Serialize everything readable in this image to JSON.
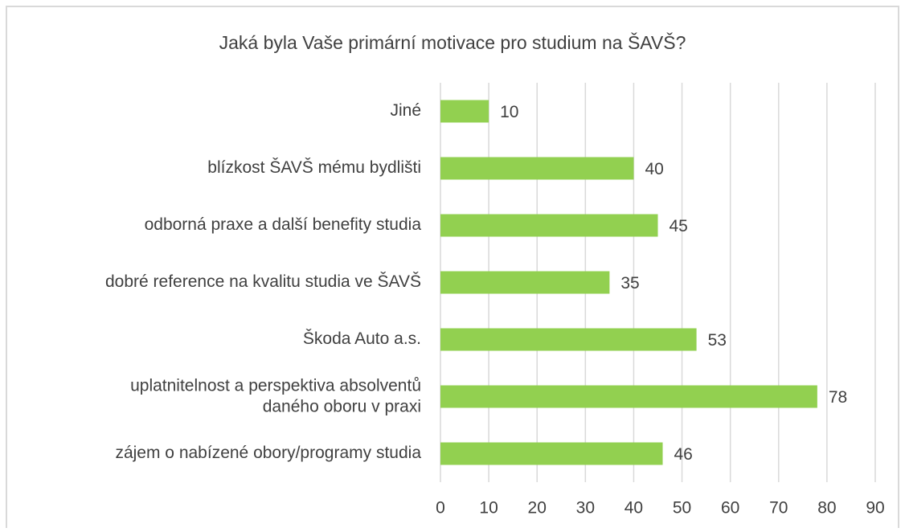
{
  "chart_data": {
    "type": "bar",
    "orientation": "horizontal",
    "title": "Jaká byla Vaše primární motivace pro studium na ŠAVŠ?",
    "categories": [
      "Jiné",
      "blízkost ŠAVŠ mému bydlišti",
      "odborná praxe a další benefity studia",
      "dobré reference na kvalitu studia ve ŠAVŠ",
      "Škoda Auto a.s.",
      "uplatnitelnost a perspektiva absolventů\ndaného oboru v praxi",
      "zájem o nabízené obory/programy studia"
    ],
    "values": [
      10,
      40,
      45,
      35,
      53,
      78,
      46
    ],
    "color": "#92d050",
    "xlim": [
      0,
      90
    ],
    "xticks": [
      0,
      10,
      20,
      30,
      40,
      50,
      60,
      70,
      80,
      90
    ],
    "grid": true
  }
}
